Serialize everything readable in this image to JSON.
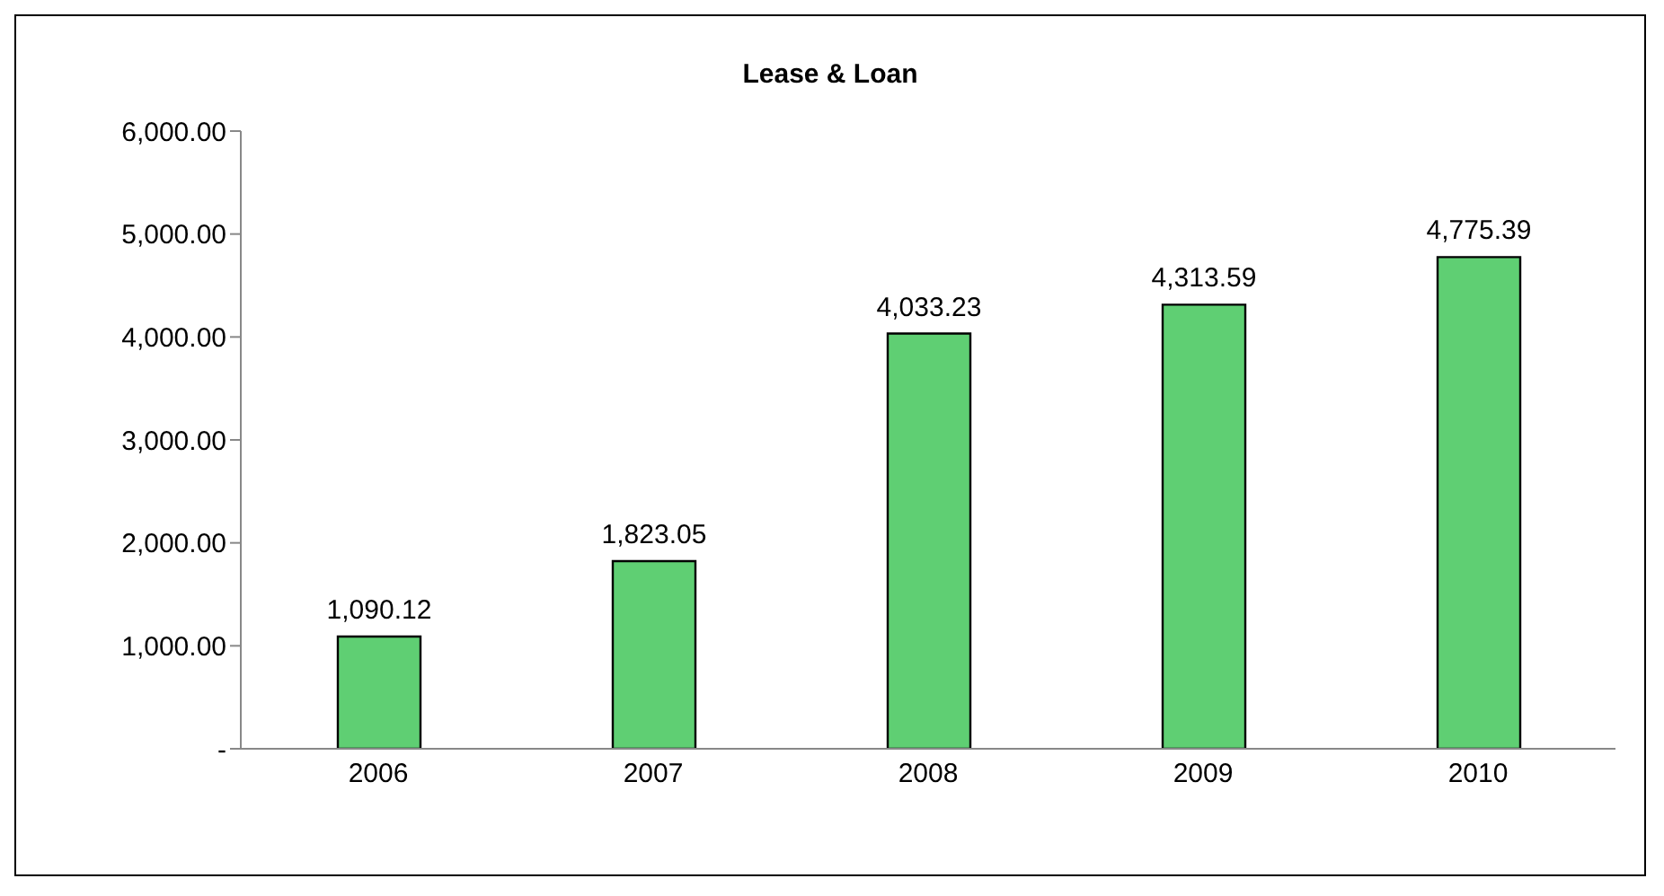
{
  "chart_data": {
    "type": "bar",
    "title": "Lease & Loan",
    "categories": [
      "2006",
      "2007",
      "2008",
      "2009",
      "2010"
    ],
    "values": [
      1090.12,
      1823.05,
      4033.23,
      4313.59,
      4775.39
    ],
    "value_labels": [
      "1,090.12",
      "1,823.05",
      "4,033.23",
      "4,313.59",
      "4,775.39"
    ],
    "color": "#5fcf73",
    "ylim": [
      0,
      6000
    ],
    "yticks": [
      {
        "value": 0,
        "label": "-"
      },
      {
        "value": 1000,
        "label": "1,000.00"
      },
      {
        "value": 2000,
        "label": "2,000.00"
      },
      {
        "value": 3000,
        "label": "3,000.00"
      },
      {
        "value": 4000,
        "label": "4,000.00"
      },
      {
        "value": 5000,
        "label": "5,000.00"
      },
      {
        "value": 6000,
        "label": "6,000.00"
      }
    ]
  }
}
